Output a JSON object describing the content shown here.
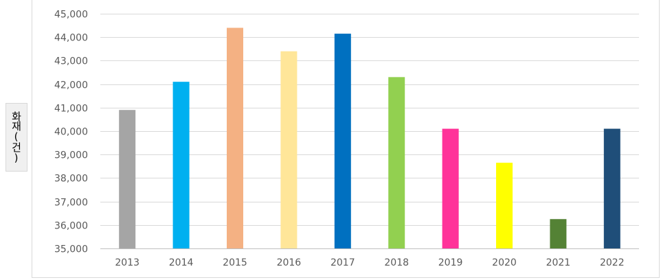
{
  "chart_data": {
    "type": "bar",
    "title": "",
    "xlabel": "",
    "ylabel": "화재(건)",
    "categories": [
      "2013",
      "2014",
      "2015",
      "2016",
      "2017",
      "2018",
      "2019",
      "2020",
      "2021",
      "2022"
    ],
    "values": [
      40900,
      42100,
      44400,
      43400,
      44150,
      42300,
      40100,
      38650,
      36250,
      40100
    ],
    "colors": [
      "#a5a5a5",
      "#00b0f0",
      "#f4b183",
      "#ffe699",
      "#0070c0",
      "#92d050",
      "#ff3399",
      "#ffff00",
      "#548235",
      "#1f4e79"
    ],
    "ylim": [
      35000,
      45000
    ],
    "yticks": [
      35000,
      36000,
      37000,
      38000,
      39000,
      40000,
      41000,
      42000,
      43000,
      44000,
      45000
    ],
    "ytick_labels": [
      "35,000",
      "36,000",
      "37,000",
      "38,000",
      "39,000",
      "40,000",
      "41,000",
      "42,000",
      "43,000",
      "44,000",
      "45,000"
    ],
    "grid": true,
    "legend": false
  }
}
